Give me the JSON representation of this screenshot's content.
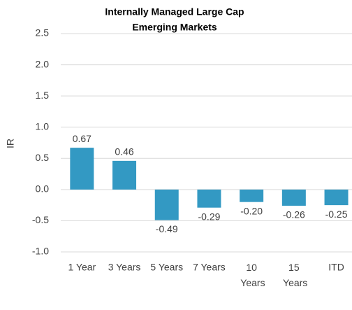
{
  "chart_data": {
    "type": "bar",
    "title": [
      "Internally Managed Large Cap",
      "Emerging Markets"
    ],
    "ylabel": "IR",
    "categories": [
      "1 Year",
      "3 Years",
      "5 Years",
      "7 Years",
      "10 Years",
      "15 Years",
      "ITD"
    ],
    "values": [
      0.67,
      0.46,
      -0.49,
      -0.29,
      -0.2,
      -0.26,
      -0.25
    ],
    "value_labels": [
      "0.67",
      "0.46",
      "-0.49",
      "-0.29",
      "-0.20",
      "-0.26",
      "-0.25"
    ],
    "color": "#3399c3",
    "ylim": [
      -1.0,
      2.5
    ],
    "yticks": [
      {
        "value": -1.0,
        "label": "-1.0"
      },
      {
        "value": -0.5,
        "label": "-0.5"
      },
      {
        "value": 0.0,
        "label": "0.0"
      },
      {
        "value": 0.5,
        "label": "0.5"
      },
      {
        "value": 1.0,
        "label": "1.0"
      },
      {
        "value": 1.5,
        "label": "1.5"
      },
      {
        "value": 2.0,
        "label": "2.0"
      },
      {
        "value": 2.5,
        "label": "2.5"
      }
    ],
    "grid": true
  }
}
